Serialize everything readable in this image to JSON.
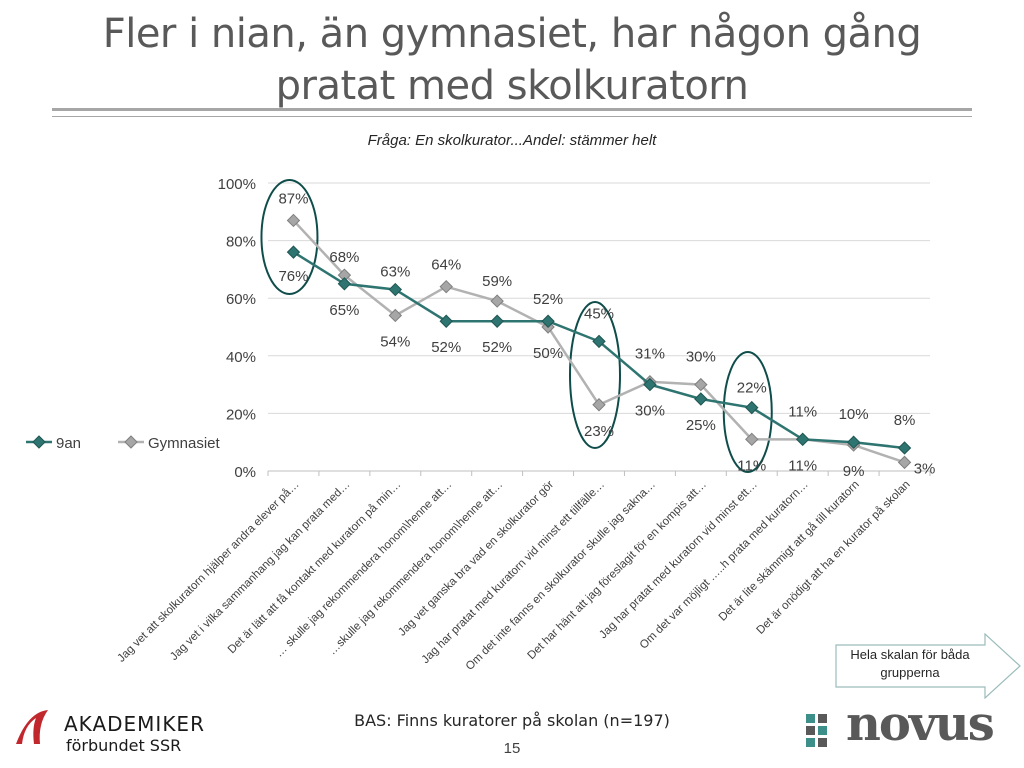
{
  "title": "Fler i nian, än gymnasiet, har någon gång pratat med skolkuratorn",
  "subtitle": "Fråga: En skolkurator...Andel: stämmer helt",
  "footer": {
    "bas": "BAS: Finns kuratorer på skolan (n=197)",
    "page_number": "15"
  },
  "callout": {
    "line1": "Hela skalan för båda",
    "line2": "grupperna"
  },
  "logos": {
    "left_name": "AKADEMIKER",
    "left_sub": "förbundet SSR",
    "right_name": "novus"
  },
  "colors": {
    "series_9an": "#2e7470",
    "series_gymnasiet": "#b2b2b2",
    "ellipse": "#0f4d4a",
    "akademiker_red": "#c0282d",
    "novus_teal": "#3d8f8a"
  },
  "chart_data": {
    "type": "line",
    "categories": [
      "Jag vet att skolkuratorn hjälper andra elever på…",
      "Jag vet i vilka sammanhang jag kan prata med…",
      "Det är lätt att få kontakt med kuratorn på min…",
      "… skulle jag rekommendera honom\\henne att…",
      "…skulle jag rekommendera honom\\henne att…",
      "Jag vet ganska bra vad en skolkurator gör",
      "Jag har pratat med kuratorn vid minst ett tillfälle…",
      "Om det inte fanns en skolkurator skulle jag sakna…",
      "Det har hänt att jag föreslagit för en kompis att…",
      "Jag har pratat med kuratorn vid minst ett…",
      "Om det var möjligt …..h prata med kuratorn…",
      "Det är lite skämmigt att gå till kuratorn",
      "Det är onödigt att ha en kurator på skolan"
    ],
    "series": [
      {
        "name": "9an",
        "values": [
          76,
          65,
          63,
          52,
          52,
          52,
          45,
          30,
          25,
          22,
          11,
          10,
          8
        ],
        "labels": [
          "76%",
          "65%",
          "63%",
          "52%",
          "52%",
          "52%",
          "45%",
          "30%",
          "25%",
          "22%",
          "11%",
          "10%",
          "8%"
        ]
      },
      {
        "name": "Gymnasiet",
        "values": [
          87,
          68,
          54,
          64,
          59,
          50,
          23,
          31,
          30,
          11,
          11,
          9,
          3
        ],
        "labels": [
          "87%",
          "68%",
          "54%",
          "64%",
          "59%",
          "50%",
          "23%",
          "31%",
          "30%",
          "11%",
          "11%",
          "9%",
          "3%"
        ]
      }
    ],
    "y_ticks": [
      "0%",
      "20%",
      "40%",
      "60%",
      "80%",
      "100%"
    ],
    "ylim": [
      0,
      100
    ],
    "grid": true,
    "legend": "left"
  }
}
